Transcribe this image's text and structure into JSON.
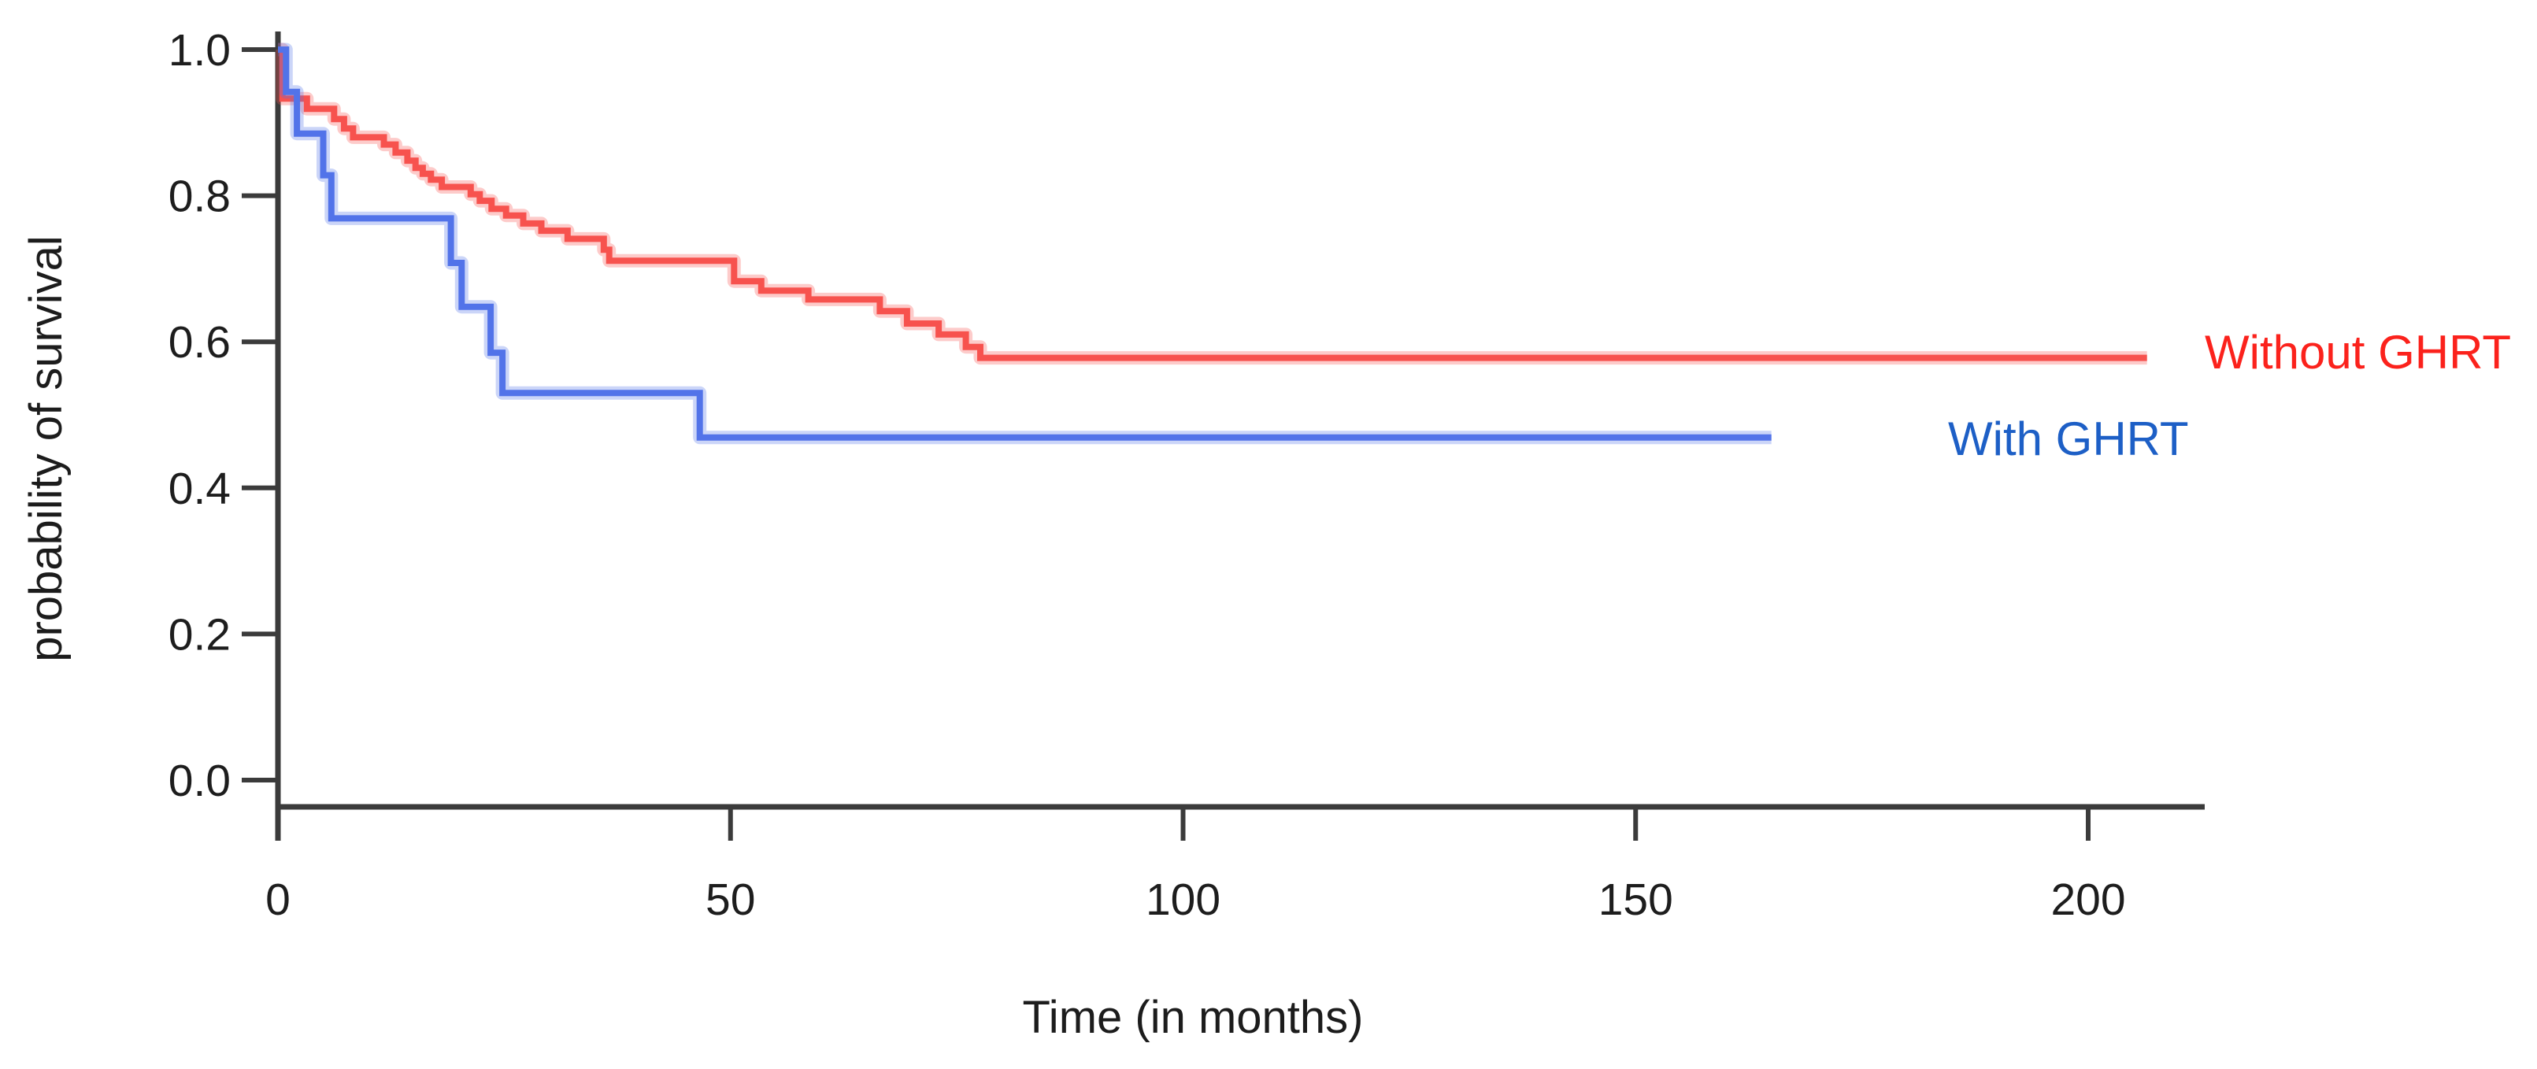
{
  "chart_data": {
    "type": "line",
    "subtype": "kaplan-meier-survival-step",
    "title": "",
    "xlabel": "Time (in months)",
    "ylabel": "probability of survival",
    "x_tick_labels": [
      "0",
      "50",
      "100",
      "150",
      "200"
    ],
    "y_tick_labels": [
      "0.0",
      "0.2",
      "0.4",
      "0.6",
      "0.8",
      "1.0"
    ],
    "xlim": [
      0,
      213
    ],
    "ylim": [
      0.0,
      1.0
    ],
    "grid": false,
    "legend_position": "right-of-curve-ends",
    "axis_color": "#3b3b3b",
    "tick_label_color": "#1d1d1d",
    "series": [
      {
        "name": "Without GHRT",
        "line_color": "#f7524e",
        "label_color": "#fb221c",
        "end_time": 206.5,
        "final_probability": 0.578,
        "steps": [
          [
            0,
            1.0
          ],
          [
            0.5,
            0.933
          ],
          [
            3.2,
            0.919
          ],
          [
            6.2,
            0.905
          ],
          [
            7.3,
            0.892
          ],
          [
            8.3,
            0.88
          ],
          [
            11.7,
            0.87
          ],
          [
            13.0,
            0.859
          ],
          [
            14.3,
            0.848
          ],
          [
            15.2,
            0.838
          ],
          [
            16.0,
            0.83
          ],
          [
            16.9,
            0.822
          ],
          [
            18.1,
            0.812
          ],
          [
            21.3,
            0.802
          ],
          [
            22.3,
            0.793
          ],
          [
            23.6,
            0.782
          ],
          [
            25.2,
            0.773
          ],
          [
            27.1,
            0.762
          ],
          [
            29.1,
            0.752
          ],
          [
            32.0,
            0.741
          ],
          [
            36.0,
            0.726
          ],
          [
            36.6,
            0.711
          ],
          [
            50.4,
            0.683
          ],
          [
            53.4,
            0.67
          ],
          [
            58.6,
            0.658
          ],
          [
            66.5,
            0.642
          ],
          [
            69.5,
            0.625
          ],
          [
            73.0,
            0.61
          ],
          [
            76.0,
            0.593
          ],
          [
            77.6,
            0.578
          ]
        ]
      },
      {
        "name": "With GHRT",
        "line_color": "#5273e9",
        "label_color": "#1d5fc6",
        "end_time": 165.0,
        "final_probability": 0.469,
        "steps": [
          [
            0,
            1.0
          ],
          [
            0.9,
            0.942
          ],
          [
            2.1,
            0.885
          ],
          [
            5.0,
            0.828
          ],
          [
            5.9,
            0.769
          ],
          [
            19.1,
            0.708
          ],
          [
            20.3,
            0.648
          ],
          [
            23.5,
            0.585
          ],
          [
            24.8,
            0.53
          ],
          [
            46.6,
            0.469
          ]
        ]
      }
    ]
  }
}
